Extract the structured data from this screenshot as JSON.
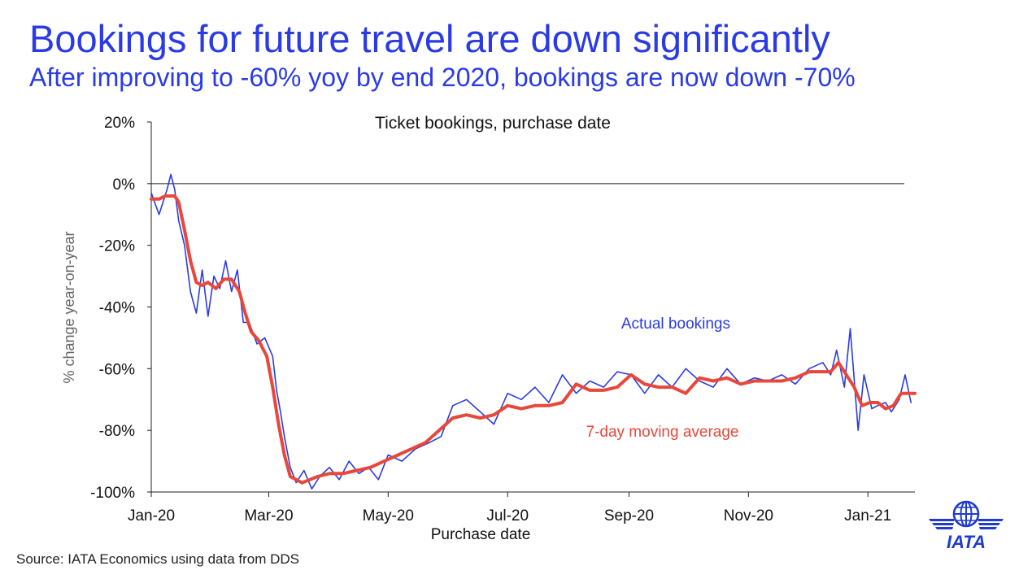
{
  "header": {
    "title": "Bookings for future travel are down significantly",
    "subtitle": "After improving to -60% yoy by end 2020, bookings are now down -70%"
  },
  "footer": {
    "source": "Source: IATA Economics using data from DDS"
  },
  "logo": {
    "text": "IATA",
    "icon": "iata-globe-wings-icon",
    "color": "#1f3bd1"
  },
  "colors": {
    "actual": "#2a3be6",
    "moving_average": "#e8473a",
    "accent": "#2a3be6"
  },
  "chart_data": {
    "type": "line",
    "title": "Ticket bookings, purchase date",
    "xlabel": "Purchase date",
    "ylabel": "% change year-on-year",
    "ylim": [
      -100,
      20
    ],
    "xlim": [
      "2020-01-01",
      "2021-01-25"
    ],
    "yticks": [
      "20%",
      "0%",
      "-20%",
      "-40%",
      "-60%",
      "-80%",
      "-100%"
    ],
    "ytick_values": [
      20,
      0,
      -20,
      -40,
      -60,
      -80,
      -100
    ],
    "xticks": [
      "Jan-20",
      "Mar-20",
      "May-20",
      "Jul-20",
      "Sep-20",
      "Nov-20",
      "Jan-21"
    ],
    "xtick_dates": [
      "2020-01-01",
      "2020-03-01",
      "2020-05-01",
      "2020-07-01",
      "2020-09-01",
      "2020-11-01",
      "2021-01-01"
    ],
    "grid": false,
    "annotations": [
      {
        "text": "Actual bookings",
        "series": "Actual bookings",
        "color": "#2a3be6",
        "x": "2020-08-28",
        "y": -47
      },
      {
        "text": "7-day moving average",
        "series": "7-day moving average",
        "color": "#e8473a",
        "x": "2020-08-10",
        "y": -82
      }
    ],
    "series": [
      {
        "name": "Actual bookings",
        "color": "#2a3be6",
        "x": [
          "2020-01-01",
          "2020-01-05",
          "2020-01-09",
          "2020-01-11",
          "2020-01-13",
          "2020-01-15",
          "2020-01-18",
          "2020-01-21",
          "2020-01-24",
          "2020-01-27",
          "2020-01-30",
          "2020-02-02",
          "2020-02-05",
          "2020-02-08",
          "2020-02-11",
          "2020-02-14",
          "2020-02-17",
          "2020-02-20",
          "2020-02-24",
          "2020-02-28",
          "2020-03-03",
          "2020-03-05",
          "2020-03-07",
          "2020-03-09",
          "2020-03-12",
          "2020-03-15",
          "2020-03-19",
          "2020-03-23",
          "2020-03-27",
          "2020-04-01",
          "2020-04-06",
          "2020-04-11",
          "2020-04-16",
          "2020-04-21",
          "2020-04-26",
          "2020-05-01",
          "2020-05-08",
          "2020-05-15",
          "2020-05-22",
          "2020-05-28",
          "2020-06-03",
          "2020-06-10",
          "2020-06-17",
          "2020-06-24",
          "2020-07-01",
          "2020-07-08",
          "2020-07-15",
          "2020-07-22",
          "2020-07-29",
          "2020-08-05",
          "2020-08-12",
          "2020-08-19",
          "2020-08-26",
          "2020-09-02",
          "2020-09-09",
          "2020-09-16",
          "2020-09-23",
          "2020-09-30",
          "2020-10-07",
          "2020-10-14",
          "2020-10-21",
          "2020-10-28",
          "2020-11-04",
          "2020-11-11",
          "2020-11-18",
          "2020-11-25",
          "2020-12-02",
          "2020-12-09",
          "2020-12-13",
          "2020-12-16",
          "2020-12-20",
          "2020-12-23",
          "2020-12-27",
          "2020-12-30",
          "2021-01-03",
          "2021-01-06",
          "2021-01-10",
          "2021-01-13",
          "2021-01-17",
          "2021-01-20",
          "2021-01-23"
        ],
        "values": [
          -3,
          -10,
          -2,
          3,
          -2,
          -12,
          -20,
          -35,
          -42,
          -28,
          -43,
          -30,
          -34,
          -25,
          -35,
          -28,
          -45,
          -45,
          -52,
          -50,
          -56,
          -67,
          -74,
          -82,
          -92,
          -97,
          -93,
          -99,
          -95,
          -92,
          -96,
          -90,
          -94,
          -92,
          -96,
          -88,
          -90,
          -86,
          -84,
          -82,
          -72,
          -70,
          -74,
          -78,
          -68,
          -70,
          -66,
          -71,
          -62,
          -68,
          -64,
          -66,
          -61,
          -62,
          -68,
          -62,
          -66,
          -60,
          -64,
          -66,
          -60,
          -65,
          -63,
          -64,
          -62,
          -65,
          -60,
          -58,
          -62,
          -54,
          -66,
          -47,
          -80,
          -62,
          -73,
          -72,
          -71,
          -74,
          -70,
          -62,
          -71
        ]
      },
      {
        "name": "7-day moving average",
        "color": "#e8473a",
        "x": [
          "2020-01-01",
          "2020-01-05",
          "2020-01-08",
          "2020-01-11",
          "2020-01-13",
          "2020-01-15",
          "2020-01-18",
          "2020-01-21",
          "2020-01-24",
          "2020-01-27",
          "2020-01-30",
          "2020-02-03",
          "2020-02-07",
          "2020-02-11",
          "2020-02-15",
          "2020-02-18",
          "2020-02-21",
          "2020-02-25",
          "2020-02-29",
          "2020-03-03",
          "2020-03-06",
          "2020-03-09",
          "2020-03-12",
          "2020-03-15",
          "2020-03-18",
          "2020-03-22",
          "2020-03-26",
          "2020-04-01",
          "2020-04-08",
          "2020-04-15",
          "2020-04-22",
          "2020-04-29",
          "2020-05-06",
          "2020-05-13",
          "2020-05-20",
          "2020-05-27",
          "2020-06-03",
          "2020-06-10",
          "2020-06-17",
          "2020-06-24",
          "2020-07-01",
          "2020-07-08",
          "2020-07-15",
          "2020-07-22",
          "2020-07-29",
          "2020-08-05",
          "2020-08-12",
          "2020-08-19",
          "2020-08-26",
          "2020-09-02",
          "2020-09-09",
          "2020-09-16",
          "2020-09-23",
          "2020-09-30",
          "2020-10-07",
          "2020-10-14",
          "2020-10-21",
          "2020-10-28",
          "2020-11-04",
          "2020-11-11",
          "2020-11-18",
          "2020-11-25",
          "2020-12-02",
          "2020-12-09",
          "2020-12-13",
          "2020-12-17",
          "2020-12-21",
          "2020-12-25",
          "2020-12-29",
          "2021-01-02",
          "2021-01-06",
          "2021-01-10",
          "2021-01-14",
          "2021-01-18",
          "2021-01-22",
          "2021-01-25"
        ],
        "values": [
          -5,
          -5,
          -4,
          -4,
          -4,
          -6,
          -15,
          -25,
          -32,
          -33,
          -32,
          -34,
          -31,
          -31,
          -35,
          -42,
          -48,
          -51,
          -56,
          -66,
          -78,
          -88,
          -95,
          -96,
          -97,
          -96,
          -95,
          -94,
          -94,
          -93,
          -92,
          -90,
          -88,
          -86,
          -84,
          -80,
          -76,
          -75,
          -76,
          -75,
          -72,
          -73,
          -72,
          -72,
          -71,
          -65,
          -67,
          -67,
          -66,
          -62,
          -65,
          -66,
          -66,
          -68,
          -63,
          -64,
          -63,
          -65,
          -64,
          -64,
          -64,
          -63,
          -61,
          -61,
          -61,
          -58,
          -62,
          -66,
          -72,
          -71,
          -71,
          -73,
          -72,
          -68,
          -68,
          -68
        ]
      }
    ]
  }
}
